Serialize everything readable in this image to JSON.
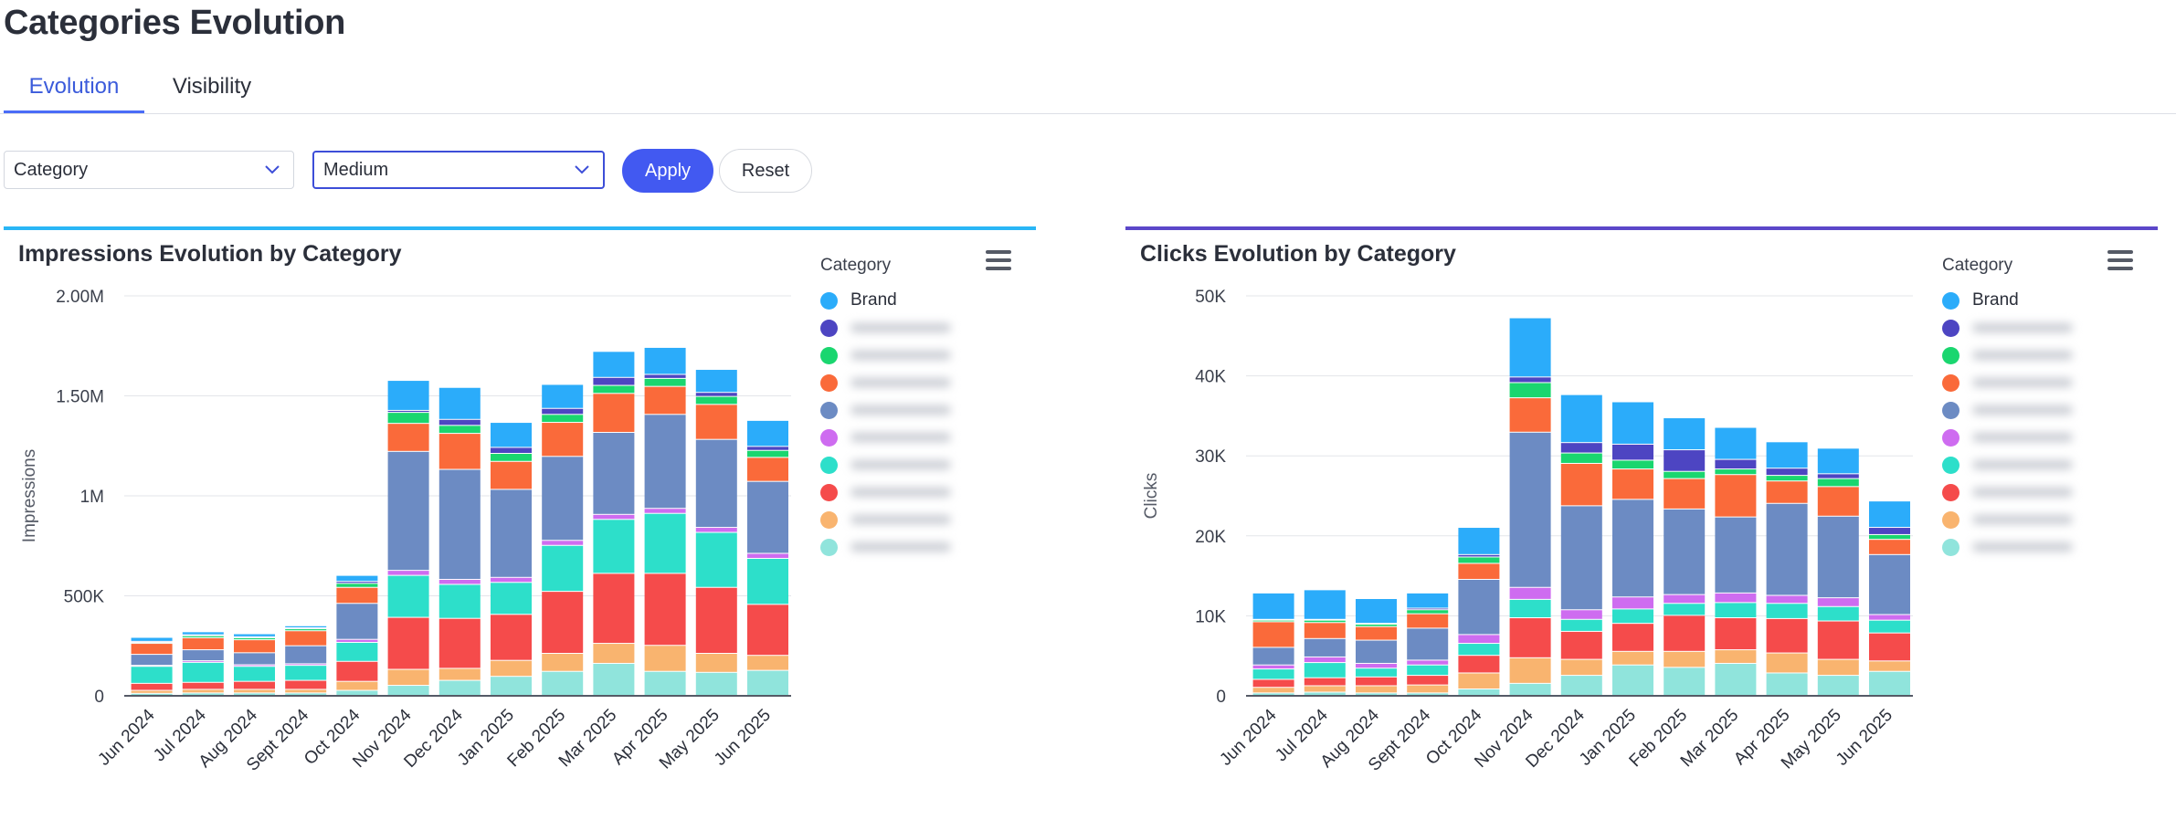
{
  "page": {
    "title": "Categories Evolution"
  },
  "tabs": [
    {
      "label": "Evolution"
    },
    {
      "label": "Visibility"
    }
  ],
  "filters": {
    "category_value": "Category",
    "medium_value": "Medium",
    "apply_label": "Apply",
    "reset_label": "Reset"
  },
  "colors": {
    "impressions_accent": "#29b6f6",
    "clicks_accent": "#5b47c9",
    "primary_button": "#4259f1"
  },
  "chart_data": [
    {
      "type": "bar",
      "stacked": true,
      "title": "Impressions Evolution by Category",
      "ylabel": "Impressions",
      "xlabel": "",
      "ylim": [
        0,
        2000000
      ],
      "yticks": [
        0,
        500000,
        1000000,
        1500000,
        2000000
      ],
      "ytick_labels": [
        "0",
        "500K",
        "1M",
        "1.50M",
        "2.00M"
      ],
      "grid": true,
      "legend_title": "Category",
      "legend_position": "right",
      "categories": [
        "Jun 2024",
        "Jul 2024",
        "Aug 2024",
        "Sept 2024",
        "Oct 2024",
        "Nov 2024",
        "Dec 2024",
        "Jan 2025",
        "Feb 2025",
        "Mar 2025",
        "Apr 2025",
        "May 2025",
        "Jun 2025"
      ],
      "series": [
        {
          "name": "",
          "color": "#90e4dc",
          "values": [
            10000,
            12000,
            12000,
            12000,
            25000,
            50000,
            75000,
            95000,
            120000,
            160000,
            120000,
            115000,
            125000
          ]
        },
        {
          "name": "",
          "color": "#f9b46f",
          "values": [
            15000,
            18000,
            18000,
            18000,
            45000,
            80000,
            60000,
            80000,
            90000,
            100000,
            130000,
            95000,
            75000
          ]
        },
        {
          "name": "",
          "color": "#f54b4b",
          "values": [
            35000,
            35000,
            40000,
            45000,
            100000,
            260000,
            250000,
            230000,
            310000,
            350000,
            360000,
            330000,
            255000
          ]
        },
        {
          "name": "",
          "color": "#2ddfca",
          "values": [
            85000,
            100000,
            75000,
            75000,
            95000,
            210000,
            170000,
            160000,
            230000,
            270000,
            300000,
            275000,
            230000
          ]
        },
        {
          "name": "",
          "color": "#ce6cf0",
          "values": [
            5000,
            8000,
            8000,
            8000,
            15000,
            25000,
            25000,
            25000,
            25000,
            25000,
            25000,
            25000,
            25000
          ]
        },
        {
          "name": "",
          "color": "#6c8bc3",
          "values": [
            55000,
            55000,
            60000,
            90000,
            180000,
            595000,
            550000,
            440000,
            420000,
            410000,
            470000,
            440000,
            360000
          ]
        },
        {
          "name": "",
          "color": "#fa6a3a",
          "values": [
            55000,
            60000,
            65000,
            75000,
            80000,
            140000,
            180000,
            140000,
            170000,
            195000,
            140000,
            175000,
            120000
          ]
        },
        {
          "name": "",
          "color": "#1ad66f",
          "values": [
            5000,
            10000,
            10000,
            10000,
            20000,
            55000,
            40000,
            40000,
            40000,
            40000,
            40000,
            40000,
            35000
          ]
        },
        {
          "name": "",
          "color": "#4d45c2",
          "values": [
            5000,
            5000,
            5000,
            5000,
            10000,
            10000,
            30000,
            30000,
            30000,
            40000,
            20000,
            20000,
            20000
          ]
        },
        {
          "name": "Brand",
          "color": "#2bacfa",
          "values": [
            20000,
            15000,
            15000,
            10000,
            30000,
            150000,
            160000,
            125000,
            120000,
            130000,
            135000,
            115000,
            130000
          ]
        }
      ]
    },
    {
      "type": "bar",
      "stacked": true,
      "title": "Clicks Evolution by Category",
      "ylabel": "Clicks",
      "xlabel": "",
      "ylim": [
        0,
        50000
      ],
      "yticks": [
        0,
        10000,
        20000,
        30000,
        40000,
        50000
      ],
      "ytick_labels": [
        "0",
        "10K",
        "20K",
        "30K",
        "40K",
        "50K"
      ],
      "grid": true,
      "legend_title": "Category",
      "legend_position": "right",
      "categories": [
        "Jun 2024",
        "Jul 2024",
        "Aug 2024",
        "Sept 2024",
        "Oct 2024",
        "Nov 2024",
        "Dec 2024",
        "Jan 2025",
        "Feb 2025",
        "Mar 2025",
        "Apr 2025",
        "May 2025",
        "Jun 2025"
      ],
      "series": [
        {
          "name": "",
          "color": "#90e4dc",
          "values": [
            300,
            400,
            300,
            300,
            800,
            1500,
            2500,
            3800,
            3500,
            4000,
            2800,
            2500,
            3000
          ]
        },
        {
          "name": "",
          "color": "#f9b46f",
          "values": [
            700,
            800,
            900,
            1000,
            2000,
            3200,
            2000,
            1700,
            2000,
            1700,
            2500,
            2000,
            1300
          ]
        },
        {
          "name": "",
          "color": "#f54b4b",
          "values": [
            1000,
            1000,
            1100,
            1200,
            2200,
            5000,
            3500,
            3500,
            4500,
            4000,
            4300,
            4800,
            3500
          ]
        },
        {
          "name": "",
          "color": "#2ddfca",
          "values": [
            1300,
            1900,
            1100,
            1300,
            1500,
            2300,
            1500,
            1800,
            1500,
            1900,
            1900,
            1800,
            1600
          ]
        },
        {
          "name": "",
          "color": "#ce6cf0",
          "values": [
            500,
            700,
            600,
            600,
            1100,
            1500,
            1200,
            1500,
            1100,
            1200,
            1000,
            1100,
            700
          ]
        },
        {
          "name": "",
          "color": "#6c8bc3",
          "values": [
            2200,
            2300,
            2900,
            4000,
            6900,
            19400,
            13000,
            12200,
            10700,
            9500,
            11500,
            10200,
            7500
          ]
        },
        {
          "name": "",
          "color": "#fa6a3a",
          "values": [
            3200,
            2000,
            1700,
            1800,
            2000,
            4300,
            5300,
            3800,
            3800,
            5300,
            2800,
            3700,
            1900
          ]
        },
        {
          "name": "",
          "color": "#1ad66f",
          "values": [
            200,
            300,
            300,
            500,
            800,
            1900,
            1300,
            1100,
            900,
            700,
            700,
            1000,
            600
          ]
        },
        {
          "name": "",
          "color": "#4d45c2",
          "values": [
            100,
            100,
            100,
            200,
            300,
            700,
            1300,
            2000,
            2700,
            1200,
            900,
            600,
            900
          ]
        },
        {
          "name": "Brand",
          "color": "#2bacfa",
          "values": [
            3300,
            3700,
            3100,
            1900,
            3400,
            7400,
            6000,
            5300,
            4000,
            4000,
            3300,
            3200,
            3300
          ]
        }
      ]
    }
  ]
}
